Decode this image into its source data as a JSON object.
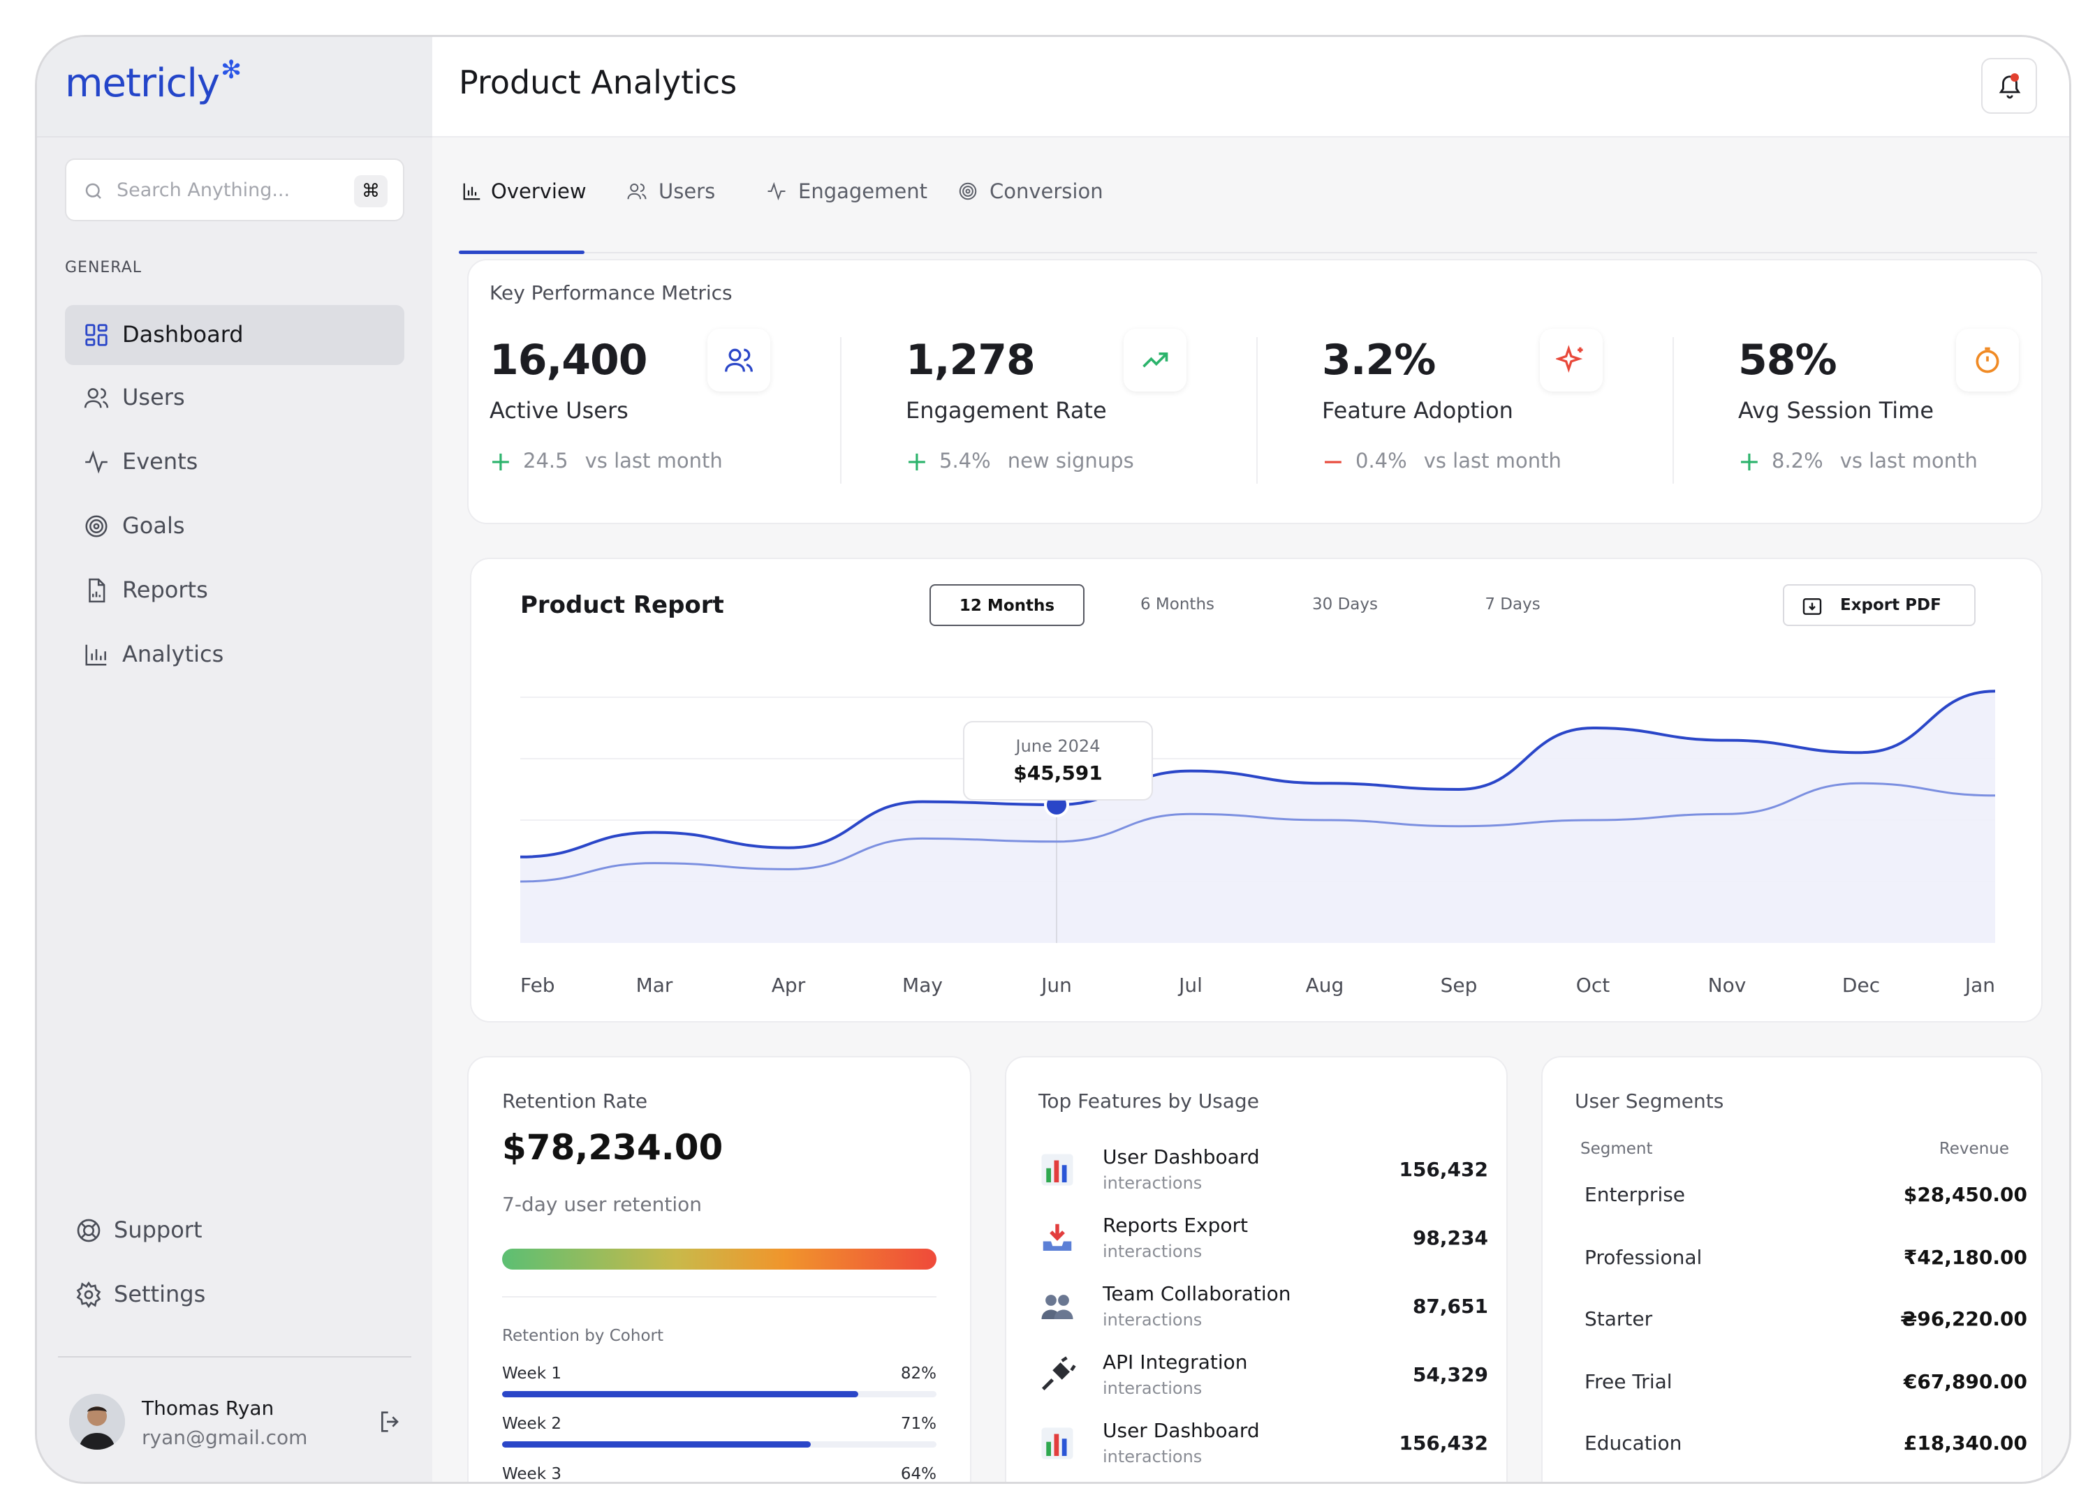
{
  "brand": {
    "name": "metricly"
  },
  "search": {
    "placeholder": "Search Anything...",
    "shortcut": "⌘"
  },
  "sidebar": {
    "section": "GENERAL",
    "items": [
      {
        "label": "Dashboard",
        "icon": "dashboard-icon",
        "active": true
      },
      {
        "label": "Users",
        "icon": "users-icon"
      },
      {
        "label": "Events",
        "icon": "activity-icon"
      },
      {
        "label": "Goals",
        "icon": "target-icon"
      },
      {
        "label": "Reports",
        "icon": "report-icon"
      },
      {
        "label": "Analytics",
        "icon": "bar-chart-icon"
      }
    ],
    "bottom": [
      {
        "label": "Support",
        "icon": "lifebuoy-icon"
      },
      {
        "label": "Settings",
        "icon": "gear-icon"
      }
    ],
    "user": {
      "name": "Thomas Ryan",
      "email": "ryan@gmail.com"
    }
  },
  "header": {
    "title": "Product Analytics"
  },
  "tabs": [
    {
      "label": "Overview",
      "active": true
    },
    {
      "label": "Users"
    },
    {
      "label": "Engagement"
    },
    {
      "label": "Conversion"
    }
  ],
  "kpi": {
    "title": "Key Performance Metrics",
    "items": [
      {
        "value": "16,400",
        "label": "Active Users",
        "sign": "+",
        "delta": "24.5",
        "note": "vs last month",
        "trend": "up",
        "icon": "users-icon",
        "icon_color": "#2a46c8"
      },
      {
        "value": "1,278",
        "label": "Engagement Rate",
        "sign": "+",
        "delta": "5.4%",
        "note": "new signups",
        "trend": "up",
        "icon": "trending-up-icon",
        "icon_color": "#2bb36b"
      },
      {
        "value": "3.2%",
        "label": "Feature Adoption",
        "sign": "−",
        "delta": "0.4%",
        "note": "vs last month",
        "trend": "down",
        "icon": "sparkle-icon",
        "icon_color": "#e8483a"
      },
      {
        "value": "58%",
        "label": "Avg Session Time",
        "sign": "+",
        "delta": "8.2%",
        "note": "vs last month",
        "trend": "up",
        "icon": "timer-icon",
        "icon_color": "#f08a24"
      }
    ]
  },
  "report": {
    "title": "Product Report",
    "ranges": [
      "12 Months",
      "6 Months",
      "30 Days",
      "7 Days"
    ],
    "active_range": "12 Months",
    "export_label": "Export PDF",
    "tooltip": {
      "label": "June 2024",
      "value": "$45,591"
    }
  },
  "chart_data": {
    "type": "area",
    "categories": [
      "Feb",
      "Mar",
      "Apr",
      "May",
      "Jun",
      "Jul",
      "Aug",
      "Sep",
      "Oct",
      "Nov",
      "Dec",
      "Jan"
    ],
    "series": [
      {
        "color": "#2a46c8",
        "values": [
          28,
          36,
          31,
          46,
          45,
          56,
          52,
          50,
          70,
          66,
          62,
          82
        ]
      },
      {
        "color": "#7b8fe0",
        "values": [
          20,
          26,
          24,
          34,
          33,
          42,
          40,
          38,
          40,
          42,
          52,
          48
        ]
      }
    ],
    "ylim": [
      0,
      100
    ],
    "highlight": {
      "category": "Jun",
      "label": "June 2024",
      "value": "$45,591"
    },
    "grid": true
  },
  "retention": {
    "title": "Retention Rate",
    "value": "$78,234.00",
    "subtitle": "7-day user retention",
    "cohort_title": "Retention by Cohort",
    "cohorts": [
      {
        "label": "Week 1",
        "pct": "82%",
        "value": 0.82
      },
      {
        "label": "Week 2",
        "pct": "71%",
        "value": 0.71
      },
      {
        "label": "Week 3",
        "pct": "64%",
        "value": 0.64
      }
    ]
  },
  "features": {
    "title": "Top Features by Usage",
    "items": [
      {
        "name": "User Dashboard",
        "sub": "interactions",
        "value": "156,432",
        "icon": "bar-chart-emoji-icon"
      },
      {
        "name": "Reports Export",
        "sub": "interactions",
        "value": "98,234",
        "icon": "inbox-tray-icon"
      },
      {
        "name": "Team Collaboration",
        "sub": "interactions",
        "value": "87,651",
        "icon": "people-icon"
      },
      {
        "name": "API Integration",
        "sub": "interactions",
        "value": "54,329",
        "icon": "plug-icon"
      },
      {
        "name": "User Dashboard",
        "sub": "interactions",
        "value": "156,432",
        "icon": "bar-chart-emoji-icon"
      }
    ]
  },
  "segments": {
    "title": "User Segments",
    "col_segment": "Segment",
    "col_revenue": "Revenue",
    "rows": [
      {
        "name": "Enterprise",
        "revenue": "$28,450.00"
      },
      {
        "name": "Professional",
        "revenue": "₹42,180.00"
      },
      {
        "name": "Starter",
        "revenue": "₴96,220.00"
      },
      {
        "name": "Free Trial",
        "revenue": "€67,890.00"
      },
      {
        "name": "Education",
        "revenue": "£18,340.00"
      }
    ]
  }
}
